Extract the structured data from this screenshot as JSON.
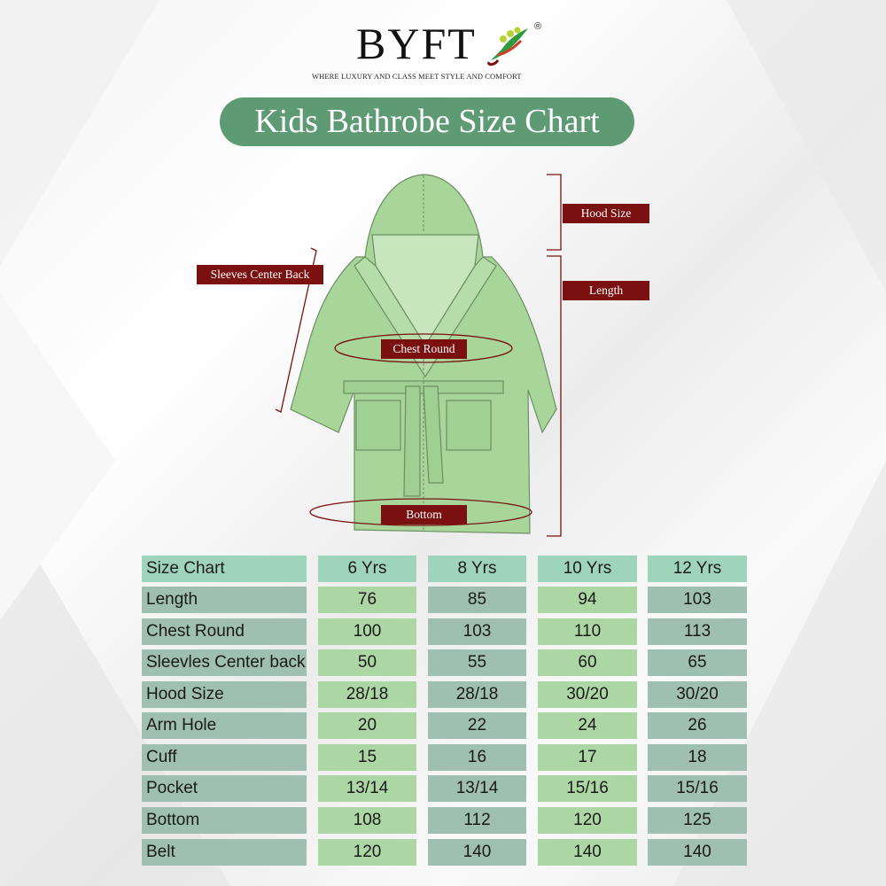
{
  "brand": {
    "name": "BYFT",
    "registered": "®",
    "tagline": "WHERE LUXURY AND CLASS MEET STYLE AND COMFORT"
  },
  "title": "Kids Bathrobe Size Chart",
  "diagram_labels": {
    "hood": "Hood Size",
    "length": "Length",
    "sleeves": "Sleeves Center Back",
    "chest": "Chest Round",
    "bottom": "Bottom"
  },
  "colors": {
    "title_bg": "#5e9a73",
    "tag_bg": "#7a1010",
    "robe": "#a8d59a",
    "header_cell": "#9fd4bc",
    "grey_cell": "#9ebfb1",
    "green_cell": "#acd7a4"
  },
  "table": {
    "headers": [
      "Size Chart",
      "6 Yrs",
      "8 Yrs",
      "10 Yrs",
      "12 Yrs"
    ],
    "rows": [
      {
        "label": "Length",
        "values": [
          "76",
          "85",
          "94",
          "103"
        ]
      },
      {
        "label": "Chest Round",
        "values": [
          "100",
          "103",
          "110",
          "113"
        ]
      },
      {
        "label": "Sleevles Center back",
        "values": [
          "50",
          "55",
          "60",
          "65"
        ]
      },
      {
        "label": "Hood Size",
        "values": [
          "28/18",
          "28/18",
          "30/20",
          "30/20"
        ]
      },
      {
        "label": "Arm Hole",
        "values": [
          "20",
          "22",
          "24",
          "26"
        ]
      },
      {
        "label": "Cuff",
        "values": [
          "15",
          "16",
          "17",
          "18"
        ]
      },
      {
        "label": "Pocket",
        "values": [
          "13/14",
          "13/14",
          "15/16",
          "15/16"
        ]
      },
      {
        "label": "Bottom",
        "values": [
          "108",
          "112",
          "120",
          "125"
        ]
      },
      {
        "label": "Belt",
        "values": [
          "120",
          "140",
          "140",
          "140"
        ]
      }
    ]
  }
}
